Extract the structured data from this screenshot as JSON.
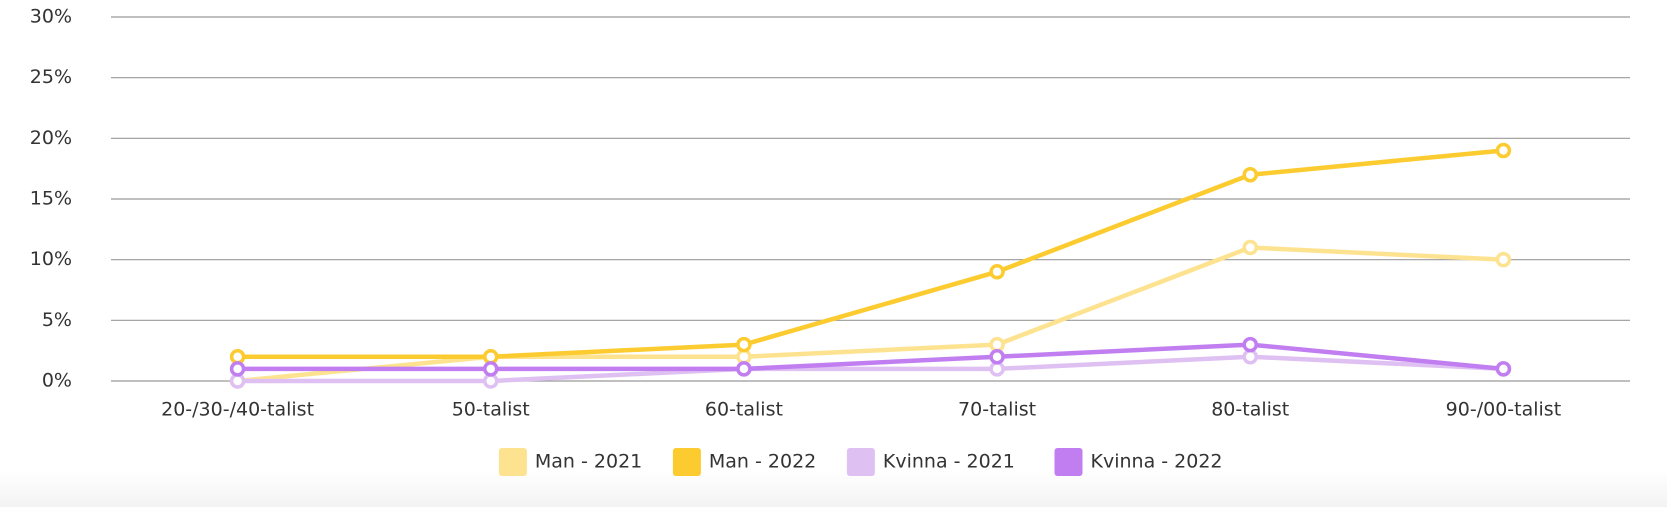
{
  "chart_data": {
    "type": "line",
    "categories": [
      "20-/30-/40-talist",
      "50-talist",
      "60-talist",
      "70-talist",
      "80-talist",
      "90-/00-talist"
    ],
    "series": [
      {
        "name": "Man - 2021",
        "color": "#fde38f",
        "values": [
          0,
          2,
          2,
          3,
          11,
          10
        ]
      },
      {
        "name": "Man - 2022",
        "color": "#fccb30",
        "values": [
          2,
          2,
          3,
          9,
          17,
          19
        ]
      },
      {
        "name": "Kvinna - 2021",
        "color": "#dfc0f2",
        "values": [
          0,
          0,
          1,
          1,
          2,
          1
        ]
      },
      {
        "name": "Kvinna - 2022",
        "color": "#c17ef0",
        "values": [
          1,
          1,
          1,
          2,
          3,
          1
        ]
      }
    ],
    "ylim": [
      0,
      30
    ],
    "yticks": [
      {
        "value": 0,
        "label": "0%"
      },
      {
        "value": 5,
        "label": "5%"
      },
      {
        "value": 10,
        "label": "10%"
      },
      {
        "value": 15,
        "label": "15%"
      },
      {
        "value": 20,
        "label": "20%"
      },
      {
        "value": 25,
        "label": "25%"
      },
      {
        "value": 30,
        "label": "30%"
      }
    ],
    "grid": true,
    "legend": "bottom"
  }
}
